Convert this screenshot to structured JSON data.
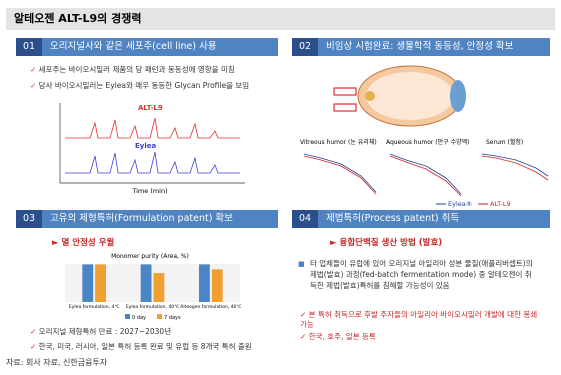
{
  "title": "알테오젠 ALT-L9의 경쟁력",
  "sections": [
    {
      "number": "01",
      "heading": "오리지널사와 같은 세포주(cell line) 사용",
      "bullets": [
        "세포주는 바이오시밀러 제품의 당 패턴과 동등성에 영향을 미침",
        "당사 바이오시밀러는 Eylea와 매우 동등한 Glycan Profile을 보임"
      ],
      "figure": {
        "labels": [
          "ALT-L9",
          "Eylea"
        ],
        "x_label": "Time (min)"
      }
    },
    {
      "number": "02",
      "heading": "비임상 시험완료: 생물학적 동등성, 안정성 확보",
      "panels": [
        "Vitreous humor (눈 유리체)",
        "Aqueous humor (안구 수양액)",
        "Serum (혈청)"
      ],
      "legend": [
        "Eylea®",
        "ALT-L9"
      ]
    },
    {
      "number": "03",
      "heading": "고유의 제형특허(Formulation patent) 확보",
      "highlight": "열 안정성 우월",
      "chart": {
        "type": "bar",
        "title": "Monomer purity (Area, %)",
        "categories": [
          "Eylea formulation, 4℃",
          "Eylea formulation, 40℃",
          "Alteogen formulation, 40℃"
        ],
        "series": [
          {
            "name": "0 day",
            "color": "#4a86c5",
            "values": [
              99,
              99,
              99
            ]
          },
          {
            "name": "7 days",
            "color": "#f0a030",
            "values": [
              99,
              76,
              86
            ]
          }
        ],
        "ylim": [
          0,
          100
        ]
      },
      "bullets": [
        "오리지널 제형특허 만료 : 2027~2030년",
        "한국, 미국, 러시아, 일본 특허 등록 완료 및 유럽 등 8개국 특허 출원"
      ]
    },
    {
      "number": "04",
      "heading": "제법특허(Process patent) 취득",
      "highlight": "융합단백질 생산 방법 (발효)",
      "note": "타 업체들이 유럽에 있어 오리지널 아일리아 성분 물질(애플리버셉트)의 제법(발효) 과정(fed-batch fermentation mode) 중 알테오젠이 취득한 제법(발효)특허를 침해할 가능성이 있음",
      "bullets": [
        "본 특허 취득으로 후발 주자들의 아일리아 바이오시밀러 개발에 대한 봉쇄 가능",
        "한국, 호주, 일본 등록"
      ]
    }
  ],
  "source": "자료: 회사 자료, 신한금융투자"
}
